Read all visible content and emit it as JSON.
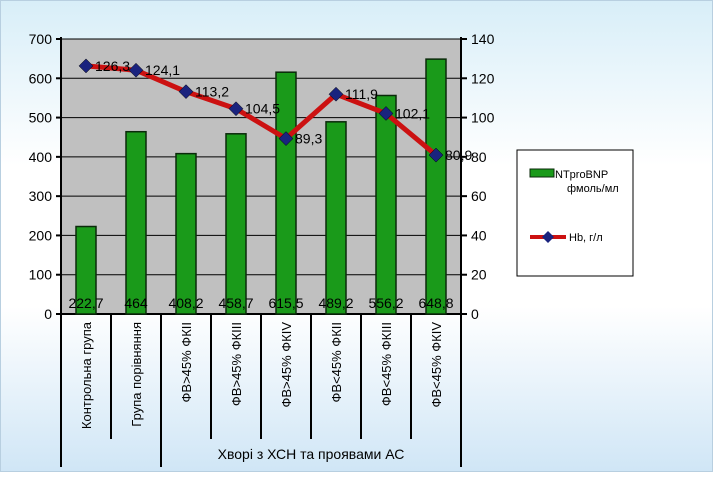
{
  "chart_data": {
    "type": "bar",
    "categories": [
      "Контрольна група",
      "Група порівняння",
      "ФВ>45% ФКІІ",
      "ФВ>45% ФКІІІ",
      "ФВ>45% ФКІV",
      "ФВ<45% ФКІІ",
      "ФВ<45% ФКІІІ",
      "ФВ<45% ФКІV"
    ],
    "group_label": "Хворі з ХСН та проявами АС",
    "y_left": {
      "ylim": [
        0,
        700
      ],
      "ticks": [
        "0",
        "100",
        "200",
        "300",
        "400",
        "500",
        "600",
        "700"
      ]
    },
    "y_right": {
      "ylim": [
        0,
        140
      ],
      "ticks": [
        "0",
        "20",
        "40",
        "60",
        "80",
        "100",
        "120",
        "140"
      ]
    },
    "grid": true,
    "legend_position": "right",
    "series": [
      {
        "name": "NTproBNP фмоль/мл",
        "type": "bar",
        "axis": "left",
        "color": "#1a9a1a",
        "values": [
          222.7,
          464,
          408.2,
          458.7,
          615.5,
          489.2,
          556.2,
          648.8
        ],
        "labels": [
          "222,7",
          "464",
          "408,2",
          "458,7",
          "615,5",
          "489,2",
          "556,2",
          "648,8"
        ]
      },
      {
        "name": "Hb, г/л",
        "type": "line",
        "axis": "right",
        "color": "#cc1111",
        "marker_color": "#1a237e",
        "values": [
          126.3,
          124.1,
          113.2,
          104.5,
          89.3,
          111.9,
          102.1,
          80.9
        ],
        "labels": [
          "126,3",
          "124,1",
          "113,2",
          "104,5",
          "89,3",
          "111,9",
          "102,1",
          "80,9"
        ]
      }
    ],
    "colors": {
      "plot_bg": "#c0c0c0",
      "bar_edge": "#0a2a0a",
      "axis": "#000000"
    }
  }
}
